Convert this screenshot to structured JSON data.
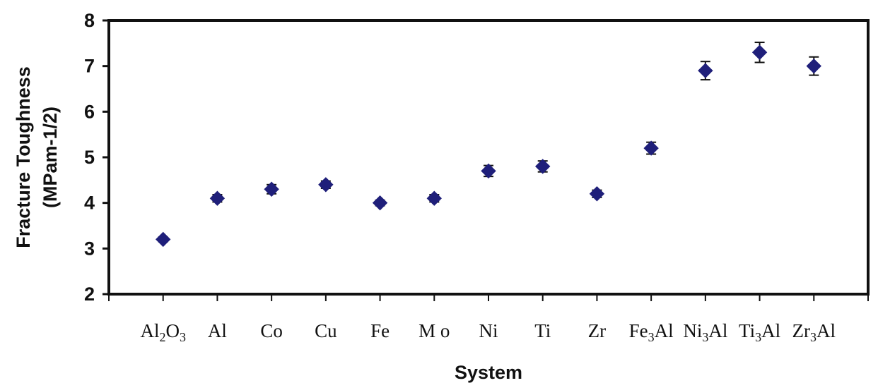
{
  "chart_data": {
    "type": "scatter",
    "xlabel": "System",
    "ylabel_line1": "Fracture Toughness",
    "ylabel_line2": "(MPam-1/2)",
    "ylim": [
      2,
      8
    ],
    "yticks": [
      2,
      3,
      4,
      5,
      6,
      7,
      8
    ],
    "grid": false,
    "legend": "none",
    "marker": "diamond",
    "marker_color": "#1f1f7a",
    "categories": [
      {
        "label": "Al2O3",
        "parts": [
          [
            "Al",
            ""
          ],
          [
            "2",
            "sub"
          ],
          [
            "O",
            ""
          ],
          [
            "3",
            "sub"
          ]
        ]
      },
      {
        "label": "Al",
        "parts": [
          [
            "Al",
            ""
          ]
        ]
      },
      {
        "label": "Co",
        "parts": [
          [
            "Co",
            ""
          ]
        ]
      },
      {
        "label": "Cu",
        "parts": [
          [
            "Cu",
            ""
          ]
        ]
      },
      {
        "label": "Fe",
        "parts": [
          [
            "Fe",
            ""
          ]
        ]
      },
      {
        "label": "Mo",
        "parts": [
          [
            "M o",
            ""
          ]
        ]
      },
      {
        "label": "Ni",
        "parts": [
          [
            "Ni",
            ""
          ]
        ]
      },
      {
        "label": "Ti",
        "parts": [
          [
            "Ti",
            ""
          ]
        ]
      },
      {
        "label": "Zr",
        "parts": [
          [
            "Zr",
            ""
          ]
        ]
      },
      {
        "label": "Fe3Al",
        "parts": [
          [
            "Fe",
            ""
          ],
          [
            "3",
            "sub"
          ],
          [
            "Al",
            ""
          ]
        ]
      },
      {
        "label": "Ni3Al",
        "parts": [
          [
            "Ni",
            ""
          ],
          [
            "3",
            "sub"
          ],
          [
            "Al",
            ""
          ]
        ]
      },
      {
        "label": "Ti3Al",
        "parts": [
          [
            "Ti",
            ""
          ],
          [
            "3",
            "sub"
          ],
          [
            "Al",
            ""
          ]
        ]
      },
      {
        "label": "Zr3Al",
        "parts": [
          [
            "Zr",
            ""
          ],
          [
            "3",
            "sub"
          ],
          [
            "Al",
            ""
          ]
        ]
      }
    ],
    "values": [
      3.2,
      4.1,
      4.3,
      4.4,
      4.0,
      4.1,
      4.7,
      4.8,
      4.2,
      5.2,
      6.9,
      7.3,
      7.0
    ],
    "errors": [
      0.05,
      0.08,
      0.1,
      0.08,
      0.06,
      0.08,
      0.12,
      0.12,
      0.08,
      0.13,
      0.2,
      0.22,
      0.2
    ]
  }
}
